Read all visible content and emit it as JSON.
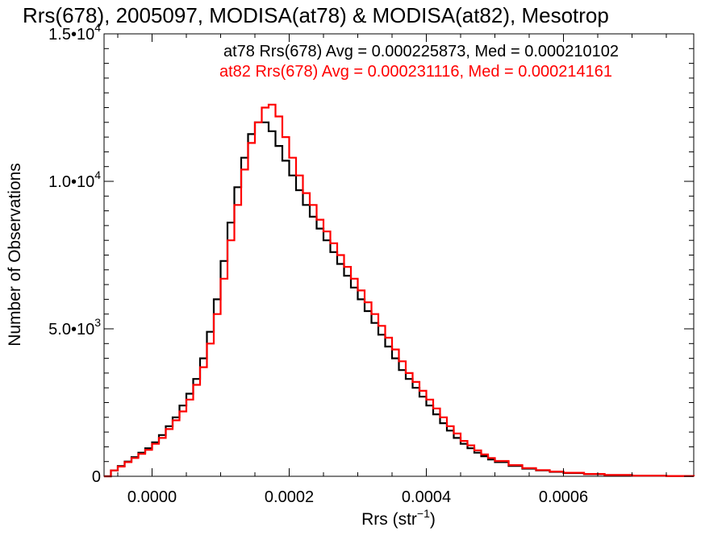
{
  "chart_data": {
    "type": "line",
    "title": "Rrs(678), 2005097, MODISA(at78) & MODISA(at82), Mesotrop",
    "xlabel": "Rrs (str",
    "xlabel_sup": "−1",
    "xlabel_end": ")",
    "ylabel": "Number of Observations",
    "xlim": [
      -7e-05,
      0.00079
    ],
    "ylim": [
      0,
      15000
    ],
    "x_ticks": [
      {
        "value": 0.0,
        "label": "0.0000"
      },
      {
        "value": 0.0002,
        "label": "0.0002"
      },
      {
        "value": 0.0004,
        "label": "0.0004"
      },
      {
        "value": 0.0006,
        "label": "0.0006"
      }
    ],
    "y_ticks": [
      {
        "value": 0,
        "label": "0",
        "sup": ""
      },
      {
        "value": 5000,
        "label": "5.0•10",
        "sup": "3"
      },
      {
        "value": 10000,
        "label": "1.0•10",
        "sup": "4"
      },
      {
        "value": 15000,
        "label": "1.5•10",
        "sup": "4"
      }
    ],
    "grid": false,
    "legend_position": "top-right",
    "series": [
      {
        "name": "at78",
        "legend": "at78 Rrs(678) Avg = 0.000225873, Med = 0.000210102",
        "color": "#000000",
        "x": [
          -7e-05,
          -6e-05,
          -5e-05,
          -4e-05,
          -3e-05,
          -2e-05,
          -1e-05,
          0.0,
          1e-05,
          2e-05,
          3e-05,
          4e-05,
          5e-05,
          6e-05,
          7e-05,
          8e-05,
          9e-05,
          0.0001,
          0.00011,
          0.00012,
          0.00013,
          0.00014,
          0.00015,
          0.00016,
          0.00017,
          0.00018,
          0.00019,
          0.0002,
          0.00021,
          0.00022,
          0.00023,
          0.00024,
          0.00025,
          0.00026,
          0.00027,
          0.00028,
          0.00029,
          0.0003,
          0.00031,
          0.00032,
          0.00033,
          0.00034,
          0.00035,
          0.00036,
          0.00037,
          0.00038,
          0.00039,
          0.0004,
          0.00041,
          0.00042,
          0.00043,
          0.00044,
          0.00045,
          0.00046,
          0.00047,
          0.00048,
          0.00049,
          0.0005,
          0.00052,
          0.00054,
          0.00056,
          0.00058,
          0.0006,
          0.00063,
          0.00066,
          0.0007,
          0.00075,
          0.00079
        ],
        "y": [
          0,
          200,
          350,
          500,
          650,
          800,
          950,
          1150,
          1400,
          1700,
          2000,
          2400,
          2800,
          3300,
          4000,
          4900,
          6000,
          7300,
          8600,
          9800,
          10800,
          11600,
          12000,
          12000,
          11700,
          11200,
          10700,
          10200,
          9700,
          9200,
          8800,
          8400,
          8000,
          7600,
          7200,
          6800,
          6400,
          6000,
          5600,
          5200,
          4800,
          4400,
          4000,
          3600,
          3300,
          3000,
          2700,
          2400,
          2100,
          1800,
          1550,
          1300,
          1100,
          950,
          800,
          680,
          570,
          480,
          350,
          260,
          200,
          150,
          110,
          70,
          40,
          20,
          10,
          0
        ]
      },
      {
        "name": "at82",
        "legend": "at82 Rrs(678) Avg = 0.000231116, Med = 0.000214161",
        "color": "#ff0000",
        "x": [
          -7e-05,
          -6e-05,
          -5e-05,
          -4e-05,
          -3e-05,
          -2e-05,
          -1e-05,
          0.0,
          1e-05,
          2e-05,
          3e-05,
          4e-05,
          5e-05,
          6e-05,
          7e-05,
          8e-05,
          9e-05,
          0.0001,
          0.00011,
          0.00012,
          0.00013,
          0.00014,
          0.00015,
          0.00016,
          0.00017,
          0.00018,
          0.00019,
          0.0002,
          0.00021,
          0.00022,
          0.00023,
          0.00024,
          0.00025,
          0.00026,
          0.00027,
          0.00028,
          0.00029,
          0.0003,
          0.00031,
          0.00032,
          0.00033,
          0.00034,
          0.00035,
          0.00036,
          0.00037,
          0.00038,
          0.00039,
          0.0004,
          0.00041,
          0.00042,
          0.00043,
          0.00044,
          0.00045,
          0.00046,
          0.00047,
          0.00048,
          0.00049,
          0.0005,
          0.00052,
          0.00054,
          0.00056,
          0.00058,
          0.0006,
          0.00063,
          0.00066,
          0.0007,
          0.00075,
          0.00079
        ],
        "y": [
          0,
          200,
          330,
          480,
          620,
          760,
          900,
          1100,
          1300,
          1600,
          1900,
          2200,
          2600,
          3100,
          3700,
          4500,
          5500,
          6700,
          8000,
          9200,
          10400,
          11300,
          12000,
          12500,
          12600,
          12200,
          11500,
          10800,
          10200,
          9600,
          9200,
          8700,
          8300,
          7900,
          7500,
          7100,
          6700,
          6300,
          5900,
          5500,
          5100,
          4700,
          4300,
          3900,
          3500,
          3200,
          2900,
          2600,
          2300,
          2000,
          1700,
          1450,
          1200,
          1050,
          880,
          740,
          620,
          520,
          380,
          280,
          210,
          160,
          120,
          80,
          45,
          22,
          10,
          0
        ]
      }
    ]
  }
}
